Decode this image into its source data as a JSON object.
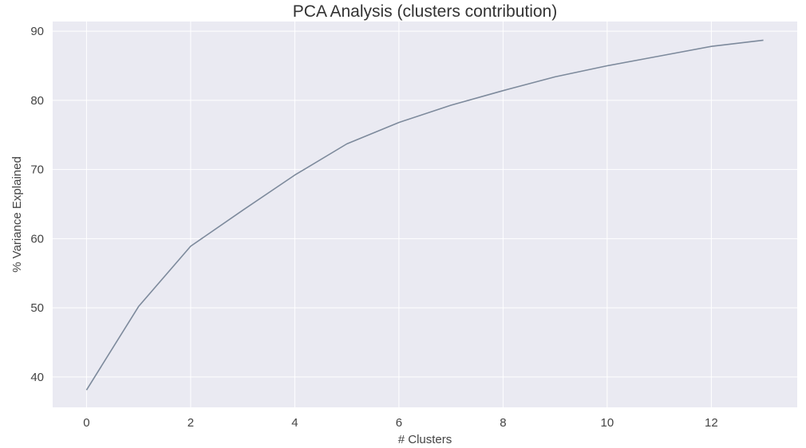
{
  "chart_data": {
    "type": "line",
    "title": "PCA Analysis (clusters contribution)",
    "xlabel": "# Clusters",
    "ylabel": "% Variance Explained",
    "x": [
      0,
      1,
      2,
      3,
      4,
      5,
      6,
      7,
      8,
      9,
      10,
      11,
      12,
      13
    ],
    "series": [
      {
        "values": [
          38.1,
          50.2,
          58.9,
          64.1,
          69.2,
          73.7,
          76.8,
          79.3,
          81.4,
          83.4,
          85.0,
          86.4,
          87.8,
          88.7
        ]
      }
    ],
    "xlim": [
      -0.65,
      13.65
    ],
    "ylim": [
      35.6,
      91.4
    ],
    "xticks": [
      0,
      2,
      4,
      6,
      8,
      10,
      12
    ],
    "yticks": [
      40,
      50,
      60,
      70,
      80,
      90
    ],
    "grid": true,
    "colors": {
      "background": "#eaeaf2",
      "grid": "#ffffff",
      "line": "#7d8a9c"
    }
  }
}
